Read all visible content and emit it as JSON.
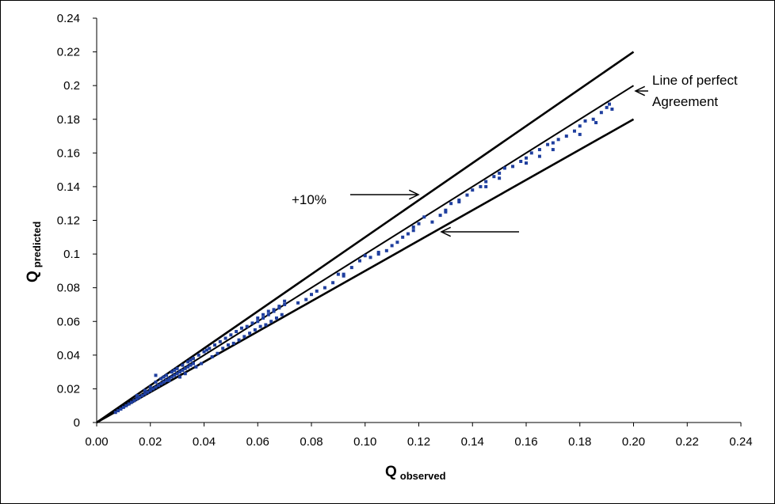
{
  "chart_data": {
    "type": "scatter",
    "xlabel": {
      "main": "Q",
      "sub": "observed"
    },
    "ylabel": {
      "main": "Q",
      "sub": "predicted"
    },
    "xlim": [
      0,
      0.24
    ],
    "ylim": [
      0,
      0.24
    ],
    "x_ticks": [
      "0.00",
      "0.02",
      "0.04",
      "0.06",
      "0.08",
      "0.10",
      "0.12",
      "0.14",
      "0.16",
      "0.18",
      "0.20",
      "0.22",
      "0.24"
    ],
    "y_ticks": [
      "0",
      "0.02",
      "0.04",
      "0.06",
      "0.08",
      "0.1",
      "0.12",
      "0.14",
      "0.16",
      "0.18",
      "0.2",
      "0.22",
      "0.24"
    ],
    "grid": false,
    "marker_color": "#1f3f9f",
    "reference_lines": [
      {
        "id": "upper",
        "x": [
          0,
          0.2
        ],
        "y": [
          0,
          0.22
        ]
      },
      {
        "id": "perfect",
        "x": [
          0,
          0.2
        ],
        "y": [
          0,
          0.2
        ]
      },
      {
        "id": "lower",
        "x": [
          0,
          0.2
        ],
        "y": [
          0,
          0.18
        ]
      }
    ],
    "annotations": {
      "perfect_line_1": "Line of perfect",
      "perfect_line_2": "Agreement",
      "upper_label": "+10%"
    },
    "series": [
      {
        "points": [
          [
            0.007,
            0.006
          ],
          [
            0.008,
            0.007
          ],
          [
            0.009,
            0.008
          ],
          [
            0.01,
            0.009
          ],
          [
            0.011,
            0.01
          ],
          [
            0.012,
            0.011
          ],
          [
            0.013,
            0.012
          ],
          [
            0.014,
            0.013
          ],
          [
            0.015,
            0.014
          ],
          [
            0.016,
            0.015
          ],
          [
            0.017,
            0.016
          ],
          [
            0.018,
            0.017
          ],
          [
            0.019,
            0.018
          ],
          [
            0.02,
            0.019
          ],
          [
            0.021,
            0.02
          ],
          [
            0.022,
            0.021
          ],
          [
            0.023,
            0.022
          ],
          [
            0.024,
            0.023
          ],
          [
            0.025,
            0.024
          ],
          [
            0.026,
            0.025
          ],
          [
            0.027,
            0.026
          ],
          [
            0.028,
            0.027
          ],
          [
            0.029,
            0.028
          ],
          [
            0.03,
            0.029
          ],
          [
            0.031,
            0.03
          ],
          [
            0.032,
            0.031
          ],
          [
            0.033,
            0.032
          ],
          [
            0.034,
            0.033
          ],
          [
            0.035,
            0.034
          ],
          [
            0.036,
            0.035
          ],
          [
            0.015,
            0.016
          ],
          [
            0.018,
            0.019
          ],
          [
            0.02,
            0.021
          ],
          [
            0.022,
            0.024
          ],
          [
            0.024,
            0.026
          ],
          [
            0.026,
            0.028
          ],
          [
            0.028,
            0.03
          ],
          [
            0.03,
            0.032
          ],
          [
            0.032,
            0.034
          ],
          [
            0.034,
            0.036
          ],
          [
            0.036,
            0.038
          ],
          [
            0.038,
            0.04
          ],
          [
            0.04,
            0.042
          ],
          [
            0.042,
            0.044
          ],
          [
            0.044,
            0.046
          ],
          [
            0.046,
            0.048
          ],
          [
            0.048,
            0.05
          ],
          [
            0.05,
            0.052
          ],
          [
            0.052,
            0.054
          ],
          [
            0.054,
            0.056
          ],
          [
            0.022,
            0.028
          ],
          [
            0.025,
            0.027
          ],
          [
            0.027,
            0.025
          ],
          [
            0.029,
            0.031
          ],
          [
            0.031,
            0.027
          ],
          [
            0.033,
            0.029
          ],
          [
            0.035,
            0.037
          ],
          [
            0.037,
            0.033
          ],
          [
            0.039,
            0.035
          ],
          [
            0.041,
            0.043
          ],
          [
            0.043,
            0.039
          ],
          [
            0.045,
            0.041
          ],
          [
            0.047,
            0.044
          ],
          [
            0.049,
            0.046
          ],
          [
            0.051,
            0.047
          ],
          [
            0.053,
            0.049
          ],
          [
            0.055,
            0.051
          ],
          [
            0.057,
            0.053
          ],
          [
            0.059,
            0.055
          ],
          [
            0.061,
            0.057
          ],
          [
            0.056,
            0.057
          ],
          [
            0.058,
            0.059
          ],
          [
            0.06,
            0.06
          ],
          [
            0.062,
            0.062
          ],
          [
            0.064,
            0.064
          ],
          [
            0.066,
            0.066
          ],
          [
            0.068,
            0.068
          ],
          [
            0.07,
            0.07
          ],
          [
            0.06,
            0.062
          ],
          [
            0.062,
            0.064
          ],
          [
            0.064,
            0.066
          ],
          [
            0.066,
            0.067
          ],
          [
            0.068,
            0.069
          ],
          [
            0.07,
            0.072
          ],
          [
            0.063,
            0.058
          ],
          [
            0.065,
            0.06
          ],
          [
            0.067,
            0.062
          ],
          [
            0.069,
            0.064
          ],
          [
            0.075,
            0.071
          ],
          [
            0.078,
            0.073
          ],
          [
            0.08,
            0.076
          ],
          [
            0.082,
            0.078
          ],
          [
            0.085,
            0.08
          ],
          [
            0.088,
            0.083
          ],
          [
            0.09,
            0.088
          ],
          [
            0.092,
            0.087
          ],
          [
            0.095,
            0.092
          ],
          [
            0.098,
            0.096
          ],
          [
            0.1,
            0.099
          ],
          [
            0.102,
            0.098
          ],
          [
            0.105,
            0.1
          ],
          [
            0.108,
            0.102
          ],
          [
            0.11,
            0.105
          ],
          [
            0.112,
            0.107
          ],
          [
            0.114,
            0.11
          ],
          [
            0.116,
            0.112
          ],
          [
            0.118,
            0.114
          ],
          [
            0.12,
            0.118
          ],
          [
            0.122,
            0.122
          ],
          [
            0.125,
            0.119
          ],
          [
            0.128,
            0.123
          ],
          [
            0.13,
            0.126
          ],
          [
            0.132,
            0.13
          ],
          [
            0.135,
            0.132
          ],
          [
            0.138,
            0.135
          ],
          [
            0.14,
            0.138
          ],
          [
            0.143,
            0.14
          ],
          [
            0.145,
            0.143
          ],
          [
            0.148,
            0.146
          ],
          [
            0.15,
            0.148
          ],
          [
            0.152,
            0.151
          ],
          [
            0.155,
            0.152
          ],
          [
            0.158,
            0.155
          ],
          [
            0.16,
            0.157
          ],
          [
            0.162,
            0.16
          ],
          [
            0.165,
            0.162
          ],
          [
            0.168,
            0.165
          ],
          [
            0.17,
            0.166
          ],
          [
            0.172,
            0.168
          ],
          [
            0.175,
            0.17
          ],
          [
            0.178,
            0.173
          ],
          [
            0.18,
            0.176
          ],
          [
            0.182,
            0.179
          ],
          [
            0.185,
            0.18
          ],
          [
            0.188,
            0.184
          ],
          [
            0.19,
            0.187
          ],
          [
            0.191,
            0.189
          ],
          [
            0.192,
            0.186
          ],
          [
            0.13,
            0.125
          ],
          [
            0.145,
            0.14
          ],
          [
            0.16,
            0.154
          ],
          [
            0.17,
            0.162
          ],
          [
            0.18,
            0.171
          ],
          [
            0.186,
            0.178
          ],
          [
            0.092,
            0.088
          ],
          [
            0.105,
            0.101
          ],
          [
            0.118,
            0.116
          ],
          [
            0.135,
            0.131
          ],
          [
            0.15,
            0.145
          ],
          [
            0.165,
            0.158
          ]
        ]
      }
    ]
  }
}
